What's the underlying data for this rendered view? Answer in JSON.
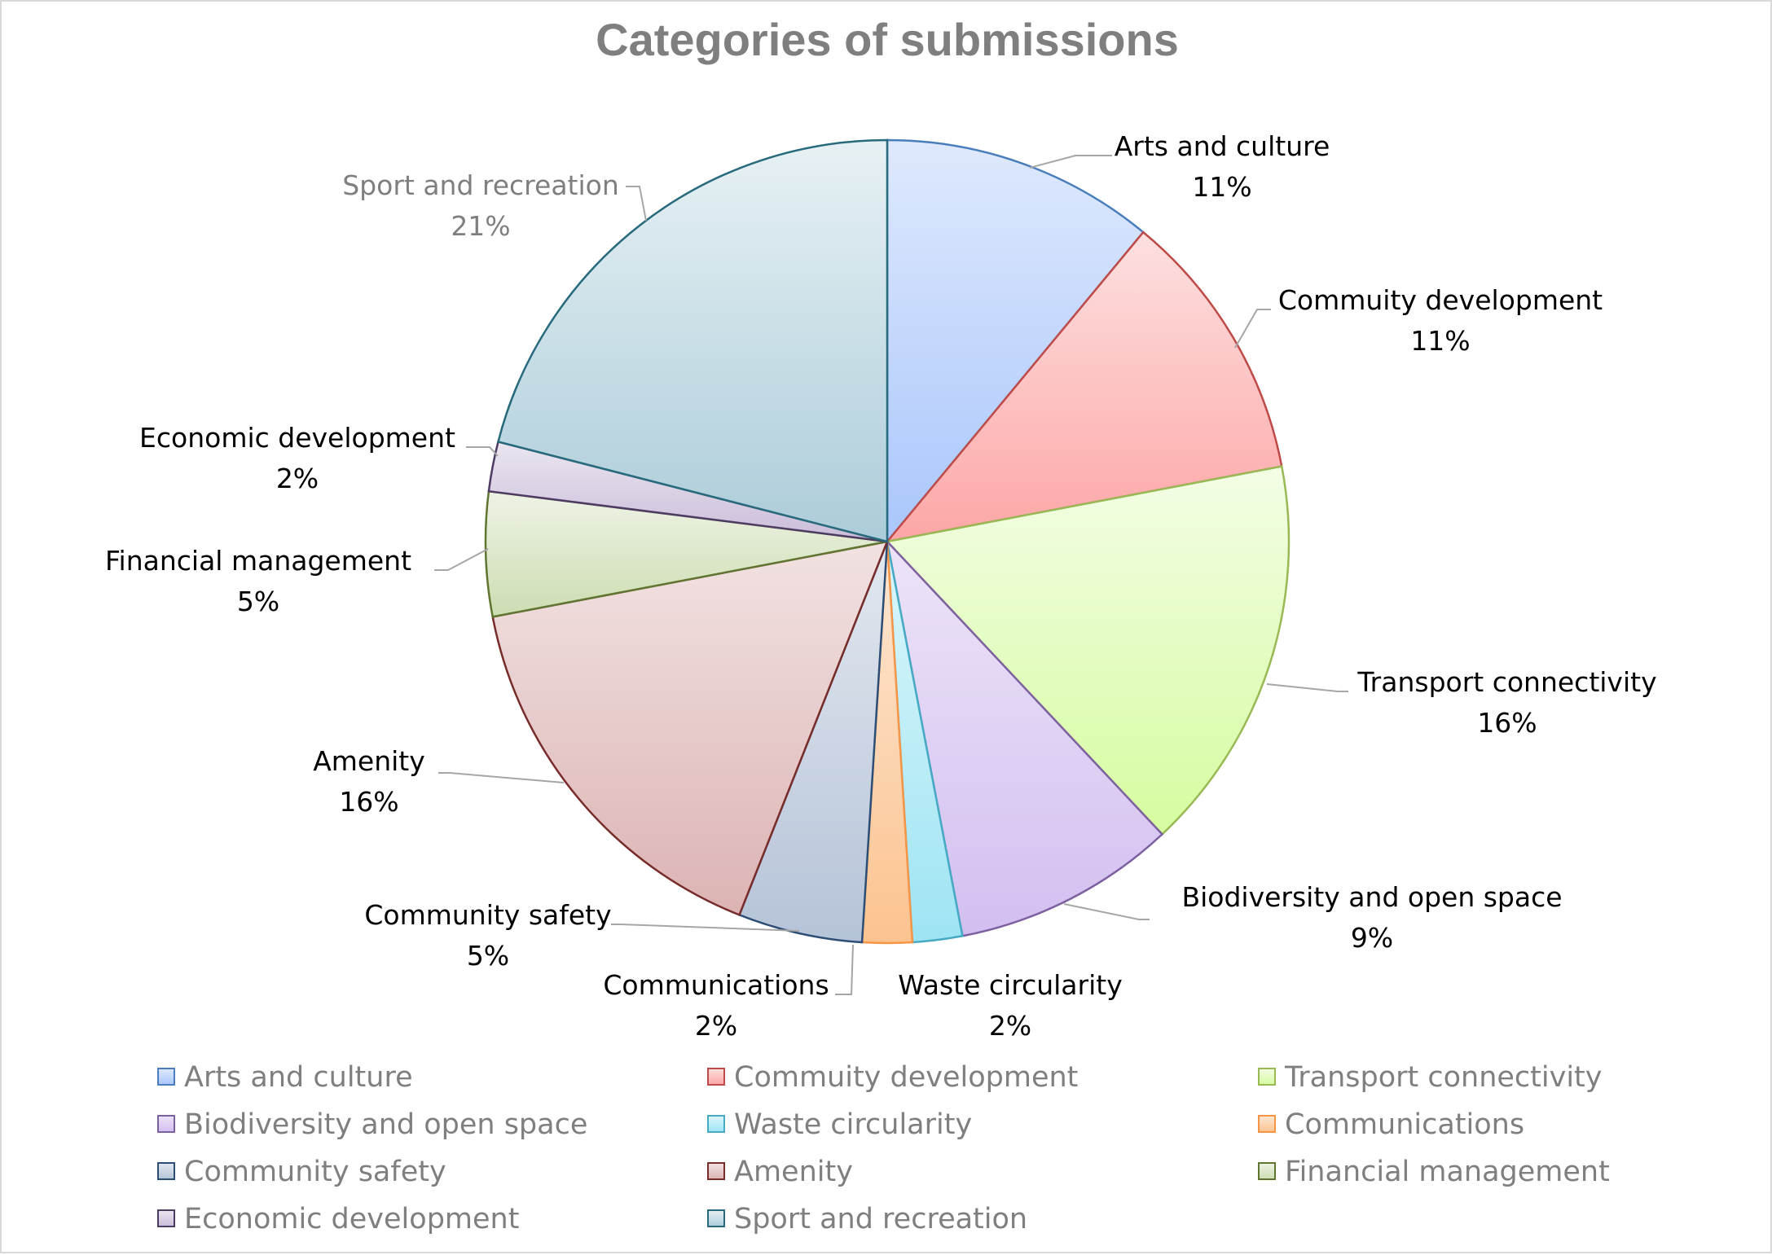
{
  "chart_data": {
    "type": "pie",
    "title": "Categories of submissions",
    "start_angle_deg": 0,
    "direction": "clockwise",
    "legend_position": "bottom",
    "legend_columns": 3,
    "slices": [
      {
        "label": "Arts and culture",
        "value": 11,
        "display": "11%",
        "color_light": "#dfe9fd",
        "color_dark": "#a9c6fb",
        "stroke": "#4a7ebb"
      },
      {
        "label": "Commuity development",
        "value": 11,
        "display": "11%",
        "color_light": "#fde0e0",
        "color_dark": "#fda6a6",
        "stroke": "#be4b48"
      },
      {
        "label": "Transport connectivity",
        "value": 16,
        "display": "16%",
        "color_light": "#f3fde5",
        "color_dark": "#d6fca0",
        "stroke": "#98b954"
      },
      {
        "label": "Biodiversity and open space",
        "value": 9,
        "display": "9%",
        "color_light": "#ede4f8",
        "color_dark": "#d2bff0",
        "stroke": "#7d60a0"
      },
      {
        "label": "Waste circularity",
        "value": 2,
        "display": "2%",
        "color_light": "#dcf6fb",
        "color_dark": "#9ee4f3",
        "stroke": "#46aac5"
      },
      {
        "label": "Communications",
        "value": 2,
        "display": "2%",
        "color_light": "#fde7d4",
        "color_dark": "#fcc38f",
        "stroke": "#f69546"
      },
      {
        "label": "Community safety",
        "value": 5,
        "display": "5%",
        "color_light": "#e3e8ef",
        "color_dark": "#b5c3d8",
        "stroke": "#2c4d75"
      },
      {
        "label": "Amenity",
        "value": 16,
        "display": "16%",
        "color_light": "#f2e2e2",
        "color_dark": "#dcb3b3",
        "stroke": "#772c2a"
      },
      {
        "label": "Financial management",
        "value": 5,
        "display": "5%",
        "color_light": "#eef3e5",
        "color_dark": "#cdddb2",
        "stroke": "#5f7530"
      },
      {
        "label": "Economic development",
        "value": 2,
        "display": "2%",
        "color_light": "#ebe6f0",
        "color_dark": "#c9bcd9",
        "stroke": "#4d3b62"
      },
      {
        "label": "Sport and recreation",
        "value": 21,
        "display": "21%",
        "color_light": "#e7f1f4",
        "color_dark": "#acccd9",
        "stroke": "#276a7c"
      }
    ]
  }
}
